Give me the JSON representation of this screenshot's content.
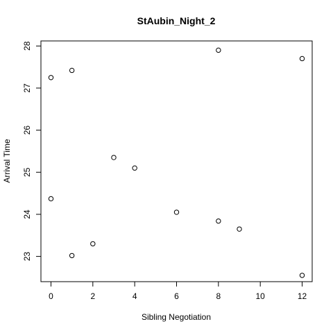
{
  "chart_data": {
    "type": "scatter",
    "title": "StAubin_Night_2",
    "xlabel": "Sibling Negotiation",
    "ylabel": "Arrival Time",
    "xlim": [
      -0.48,
      12.48
    ],
    "ylim": [
      22.4,
      28.12
    ],
    "xticks": [
      0,
      2,
      4,
      6,
      8,
      10,
      12
    ],
    "yticks": [
      23,
      24,
      25,
      26,
      27,
      28
    ],
    "grid": false,
    "points": [
      {
        "x": 0,
        "y": 27.25
      },
      {
        "x": 0,
        "y": 24.37
      },
      {
        "x": 1,
        "y": 27.42
      },
      {
        "x": 1,
        "y": 23.02
      },
      {
        "x": 2,
        "y": 23.3
      },
      {
        "x": 3,
        "y": 25.35
      },
      {
        "x": 4,
        "y": 25.1
      },
      {
        "x": 6,
        "y": 24.05
      },
      {
        "x": 8,
        "y": 27.9
      },
      {
        "x": 8,
        "y": 23.84
      },
      {
        "x": 9,
        "y": 23.65
      },
      {
        "x": 12,
        "y": 27.7
      },
      {
        "x": 12,
        "y": 22.55
      }
    ]
  }
}
